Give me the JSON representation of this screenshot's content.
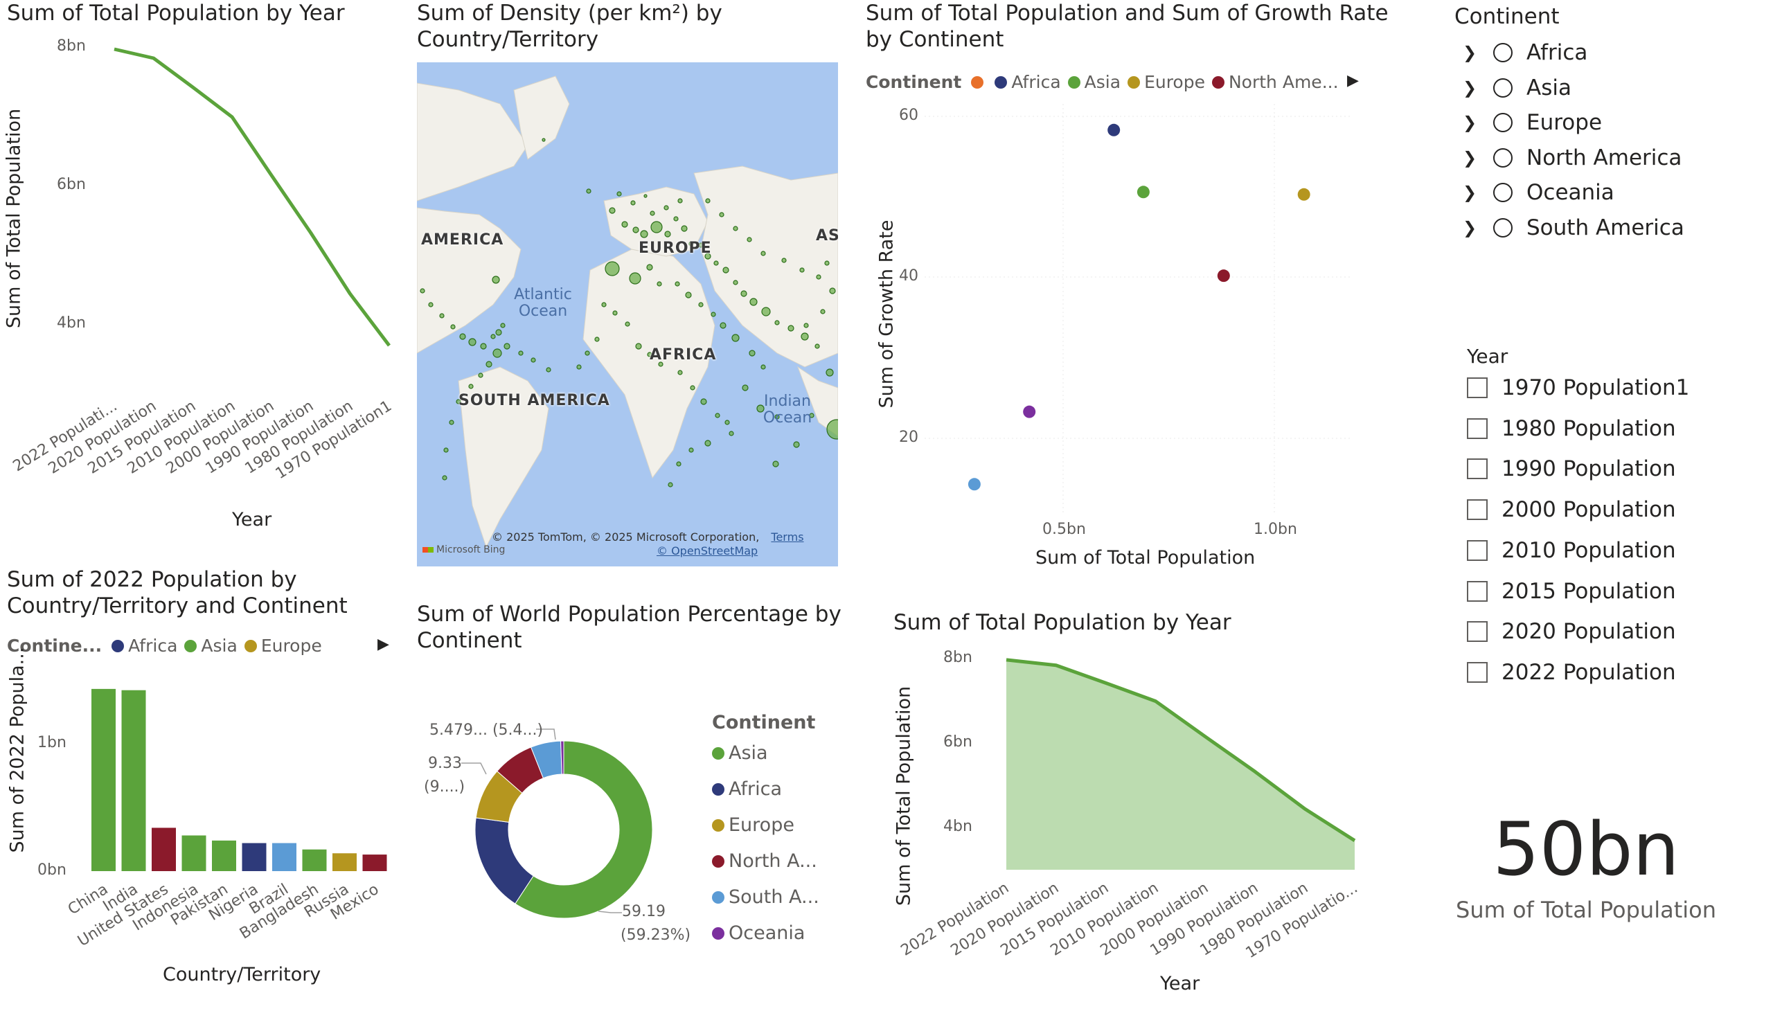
{
  "line_chart": {
    "title": "Sum of Total Population by Year",
    "ylabel": "Sum of Total Population",
    "xlabel": "Year",
    "y_ticks": [
      "8bn",
      "6bn",
      "4bn"
    ],
    "x_labels": [
      "2022 Populati...",
      "2020 Population",
      "2015 Population",
      "2010 Population",
      "2000 Population",
      "1990 Population",
      "1980 Population",
      "1970 Population1"
    ],
    "color": "#5ba33b"
  },
  "map_chart": {
    "title": "Sum of Density (per km²) by Country/Territory",
    "labels": [
      "AMERICA",
      "EUROPE",
      "AFRICA",
      "SOUTH AMERICA",
      "AS"
    ],
    "oceans": [
      "Atlantic Ocean",
      "Indian Ocean"
    ],
    "attribution": "© 2025 TomTom, © 2025 Microsoft Corporation,",
    "terms": "Terms",
    "osm": "© OpenStreetMap",
    "bing": "Microsoft Bing"
  },
  "scatter_chart": {
    "title": "Sum of Total Population and Sum of Growth Rate by Continent",
    "legend_title": "Continent",
    "legend_items": [
      {
        "label": "",
        "color": "#e8702a"
      },
      {
        "label": "Africa",
        "color": "#2e3a7a"
      },
      {
        "label": "Asia",
        "color": "#5ba33b"
      },
      {
        "label": "Europe",
        "color": "#b5961f"
      },
      {
        "label": "North Ame...",
        "color": "#8b1a2b"
      }
    ],
    "ylabel": "Sum of Growth Rate",
    "xlabel": "Sum of Total Population",
    "y_ticks": [
      "60",
      "40",
      "20"
    ],
    "x_ticks": [
      "0.5bn",
      "1.0bn"
    ]
  },
  "bar_chart": {
    "title": "Sum of 2022 Population by Country/Territory and Continent",
    "legend_title": "Contine...",
    "legend_items": [
      {
        "label": "Africa",
        "color": "#2e3a7a"
      },
      {
        "label": "Asia",
        "color": "#5ba33b"
      },
      {
        "label": "Europe",
        "color": "#b5961f"
      }
    ],
    "ylabel": "Sum of 2022 Popula...",
    "xlabel": "Country/Territory",
    "y_ticks": [
      "1bn",
      "0bn"
    ]
  },
  "donut_chart": {
    "title": "Sum of World Population Percentage by Continent",
    "legend_title": "Continent",
    "labels": {
      "small_a": "5.479... (5.4...)",
      "europe_1": "9.33",
      "europe_2": "(9....)",
      "asia_1": "59.19",
      "asia_2": "(59.23%)"
    }
  },
  "area_chart": {
    "title": "Sum of Total Population by Year",
    "ylabel": "Sum of Total Population",
    "xlabel": "Year",
    "y_ticks": [
      "8bn",
      "6bn",
      "4bn"
    ],
    "x_labels": [
      "2022 Population",
      "2020 Population",
      "2015 Population",
      "2010 Population",
      "2000 Population",
      "1990 Population",
      "1980 Population",
      "1970 Populatio..."
    ]
  },
  "slicer_continent": {
    "title": "Continent",
    "items": [
      "Africa",
      "Asia",
      "Europe",
      "North America",
      "Oceania",
      "South America"
    ]
  },
  "slicer_year": {
    "title": "Year",
    "items": [
      "1970 Population1",
      "1980 Population",
      "1990 Population",
      "2000 Population",
      "2010 Population",
      "2015 Population",
      "2020 Population",
      "2022 Population"
    ]
  },
  "card": {
    "value": "50bn",
    "label": "Sum of Total Population"
  },
  "chart_data": [
    {
      "type": "line",
      "title": "Sum of Total Population by Year",
      "xlabel": "Year",
      "ylabel": "Sum of Total Population",
      "categories": [
        "2022 Populati...",
        "2020 Population",
        "2015 Population",
        "2010 Population",
        "2000 Population",
        "1990 Population",
        "1980 Population",
        "1970 Population1"
      ],
      "values": [
        7.97,
        7.84,
        7.42,
        6.99,
        6.15,
        5.32,
        4.44,
        3.69
      ],
      "ylim": [
        3.5,
        8.2
      ],
      "unit": "bn"
    },
    {
      "type": "scatter",
      "title": "Sum of Total Population and Sum of Growth Rate by Continent",
      "xlabel": "Sum of Total Population",
      "ylabel": "Sum of Growth Rate",
      "xlim": [
        0.15,
        1.25
      ],
      "ylim": [
        10,
        62
      ],
      "series": [
        {
          "name": "Africa",
          "color": "#2e3a7a",
          "x": 0.62,
          "y": 58.3
        },
        {
          "name": "Asia",
          "color": "#5ba33b",
          "x": 0.69,
          "y": 50.6
        },
        {
          "name": "Europe",
          "color": "#b5961f",
          "x": 1.07,
          "y": 50.3
        },
        {
          "name": "North America",
          "color": "#8b1a2b",
          "x": 0.88,
          "y": 40.2
        },
        {
          "name": "Oceania",
          "color": "#7b2f9e",
          "x": 0.42,
          "y": 23.3
        },
        {
          "name": "South America",
          "color": "#5b9bd5",
          "x": 0.29,
          "y": 14.3
        }
      ]
    },
    {
      "type": "bar",
      "title": "Sum of 2022 Population by Country/Territory and Continent",
      "xlabel": "Country/Territory",
      "ylabel": "Sum of 2022 Popula...",
      "categories": [
        "China",
        "India",
        "United States",
        "Indonesia",
        "Pakistan",
        "Nigeria",
        "Brazil",
        "Bangladesh",
        "Russia",
        "Mexico"
      ],
      "values": [
        1.43,
        1.42,
        0.34,
        0.28,
        0.24,
        0.22,
        0.22,
        0.17,
        0.14,
        0.13
      ],
      "colors": [
        "#5ba33b",
        "#5ba33b",
        "#8b1a2b",
        "#5ba33b",
        "#5ba33b",
        "#2e3a7a",
        "#5b9bd5",
        "#5ba33b",
        "#b5961f",
        "#8b1a2b"
      ],
      "ylim": [
        0,
        1.5
      ],
      "unit": "bn"
    },
    {
      "type": "pie",
      "title": "Sum of World Population Percentage by Continent",
      "slices": [
        {
          "name": "Asia",
          "value": 59.19,
          "color": "#5ba33b"
        },
        {
          "name": "Africa",
          "value": 17.87,
          "color": "#2e3a7a"
        },
        {
          "name": "Europe",
          "value": 9.33,
          "color": "#b5961f"
        },
        {
          "name": "North A...",
          "value": 7.51,
          "color": "#8b1a2b"
        },
        {
          "name": "South A...",
          "value": 5.48,
          "color": "#5b9bd5"
        },
        {
          "name": "Oceania",
          "value": 0.55,
          "color": "#7b2f9e"
        }
      ]
    },
    {
      "type": "area",
      "title": "Sum of Total Population by Year",
      "xlabel": "Year",
      "ylabel": "Sum of Total Population",
      "categories": [
        "2022 Population",
        "2020 Population",
        "2015 Population",
        "2010 Population",
        "2000 Population",
        "1990 Population",
        "1980 Population",
        "1970 Populatio..."
      ],
      "values": [
        7.97,
        7.84,
        7.42,
        6.99,
        6.15,
        5.32,
        4.44,
        3.69
      ],
      "ylim": [
        3.0,
        8.3
      ],
      "unit": "bn",
      "fill_color": "#bcdcb0",
      "line_color": "#5ba33b"
    }
  ]
}
